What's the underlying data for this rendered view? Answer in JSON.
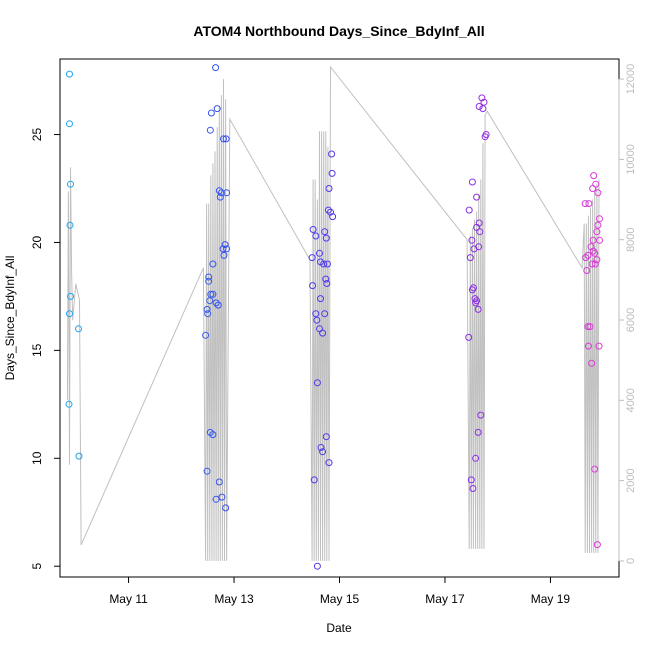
{
  "chart_data": {
    "type": "scatter",
    "title": "ATOM4 Northbound Days_Since_BdyInf_All",
    "xlabel": "Date",
    "ylabel": "Days_Since_BdyInf_All",
    "x_unit": "date (May, fractional day)",
    "xlim": [
      9.7,
      20.3
    ],
    "ylim": [
      4.5,
      28.5
    ],
    "x_ticks": [
      11,
      13,
      15,
      17,
      19
    ],
    "x_tick_labels": [
      "May 11",
      "May 13",
      "May 15",
      "May 17",
      "May 19"
    ],
    "y_ticks": [
      5,
      10,
      15,
      20,
      25
    ],
    "y2_ticks": [
      0,
      2000,
      4000,
      6000,
      8000,
      10000,
      12000
    ],
    "y2lim": [
      -400,
      12500
    ],
    "grid": false,
    "legend": "none",
    "colors": {
      "line": "#c0c0c0",
      "axis": "#000000",
      "right_axis": "#bdbdbd",
      "point_gradient": [
        "#1fa8f0",
        "#3a46ee",
        "#6a2ae8",
        "#e23ad8"
      ]
    },
    "points": [
      {
        "x": 9.88,
        "y": 27.8
      },
      {
        "x": 9.88,
        "y": 25.5
      },
      {
        "x": 9.9,
        "y": 22.7
      },
      {
        "x": 9.89,
        "y": 20.8
      },
      {
        "x": 9.88,
        "y": 16.7
      },
      {
        "x": 9.9,
        "y": 17.5
      },
      {
        "x": 9.87,
        "y": 12.5
      },
      {
        "x": 10.05,
        "y": 16.0
      },
      {
        "x": 10.06,
        "y": 10.1
      },
      {
        "x": 12.65,
        "y": 28.1
      },
      {
        "x": 12.68,
        "y": 26.2
      },
      {
        "x": 12.57,
        "y": 26.0
      },
      {
        "x": 12.55,
        "y": 25.2
      },
      {
        "x": 12.8,
        "y": 24.8
      },
      {
        "x": 12.85,
        "y": 24.8
      },
      {
        "x": 12.72,
        "y": 22.4
      },
      {
        "x": 12.76,
        "y": 22.3
      },
      {
        "x": 12.86,
        "y": 22.3
      },
      {
        "x": 12.74,
        "y": 22.1
      },
      {
        "x": 12.83,
        "y": 19.9
      },
      {
        "x": 12.86,
        "y": 19.7
      },
      {
        "x": 12.79,
        "y": 19.7
      },
      {
        "x": 12.81,
        "y": 19.4
      },
      {
        "x": 12.6,
        "y": 19.0
      },
      {
        "x": 12.52,
        "y": 18.4
      },
      {
        "x": 12.52,
        "y": 18.2
      },
      {
        "x": 12.56,
        "y": 17.6
      },
      {
        "x": 12.6,
        "y": 17.6
      },
      {
        "x": 12.54,
        "y": 17.3
      },
      {
        "x": 12.66,
        "y": 17.2
      },
      {
        "x": 12.7,
        "y": 17.1
      },
      {
        "x": 12.49,
        "y": 16.9
      },
      {
        "x": 12.5,
        "y": 16.7
      },
      {
        "x": 12.46,
        "y": 15.7
      },
      {
        "x": 12.55,
        "y": 11.2
      },
      {
        "x": 12.6,
        "y": 11.1
      },
      {
        "x": 12.49,
        "y": 9.4
      },
      {
        "x": 12.72,
        "y": 8.9
      },
      {
        "x": 12.77,
        "y": 8.2
      },
      {
        "x": 12.66,
        "y": 8.1
      },
      {
        "x": 12.84,
        "y": 7.7
      },
      {
        "x": 14.85,
        "y": 24.1
      },
      {
        "x": 14.86,
        "y": 23.2
      },
      {
        "x": 14.8,
        "y": 22.5
      },
      {
        "x": 14.79,
        "y": 21.5
      },
      {
        "x": 14.83,
        "y": 21.4
      },
      {
        "x": 14.87,
        "y": 21.2
      },
      {
        "x": 14.5,
        "y": 20.6
      },
      {
        "x": 14.72,
        "y": 20.5
      },
      {
        "x": 14.55,
        "y": 20.3
      },
      {
        "x": 14.75,
        "y": 20.2
      },
      {
        "x": 14.62,
        "y": 19.5
      },
      {
        "x": 14.48,
        "y": 19.3
      },
      {
        "x": 14.64,
        "y": 19.1
      },
      {
        "x": 14.7,
        "y": 19.0
      },
      {
        "x": 14.77,
        "y": 19.0
      },
      {
        "x": 14.74,
        "y": 18.3
      },
      {
        "x": 14.76,
        "y": 18.1
      },
      {
        "x": 14.49,
        "y": 18.0
      },
      {
        "x": 14.64,
        "y": 17.4
      },
      {
        "x": 14.55,
        "y": 16.7
      },
      {
        "x": 14.72,
        "y": 16.7
      },
      {
        "x": 14.57,
        "y": 16.4
      },
      {
        "x": 14.62,
        "y": 16.0
      },
      {
        "x": 14.68,
        "y": 15.8
      },
      {
        "x": 14.58,
        "y": 13.5
      },
      {
        "x": 14.75,
        "y": 11.0
      },
      {
        "x": 14.65,
        "y": 10.5
      },
      {
        "x": 14.68,
        "y": 10.3
      },
      {
        "x": 14.8,
        "y": 9.8
      },
      {
        "x": 14.52,
        "y": 9.0
      },
      {
        "x": 14.58,
        "y": 5.0
      },
      {
        "x": 17.7,
        "y": 26.7
      },
      {
        "x": 17.74,
        "y": 26.5
      },
      {
        "x": 17.65,
        "y": 26.3
      },
      {
        "x": 17.72,
        "y": 26.2
      },
      {
        "x": 17.78,
        "y": 25.0
      },
      {
        "x": 17.76,
        "y": 24.9
      },
      {
        "x": 17.52,
        "y": 22.8
      },
      {
        "x": 17.6,
        "y": 22.1
      },
      {
        "x": 17.46,
        "y": 21.5
      },
      {
        "x": 17.65,
        "y": 20.9
      },
      {
        "x": 17.6,
        "y": 20.7
      },
      {
        "x": 17.66,
        "y": 20.5
      },
      {
        "x": 17.51,
        "y": 20.1
      },
      {
        "x": 17.64,
        "y": 19.8
      },
      {
        "x": 17.55,
        "y": 19.7
      },
      {
        "x": 17.48,
        "y": 19.3
      },
      {
        "x": 17.54,
        "y": 17.9
      },
      {
        "x": 17.52,
        "y": 17.8
      },
      {
        "x": 17.57,
        "y": 17.4
      },
      {
        "x": 17.6,
        "y": 17.3
      },
      {
        "x": 17.58,
        "y": 17.2
      },
      {
        "x": 17.63,
        "y": 16.9
      },
      {
        "x": 17.45,
        "y": 15.6
      },
      {
        "x": 17.68,
        "y": 12.0
      },
      {
        "x": 17.63,
        "y": 11.2
      },
      {
        "x": 17.58,
        "y": 10.0
      },
      {
        "x": 17.5,
        "y": 9.0
      },
      {
        "x": 17.53,
        "y": 8.6
      },
      {
        "x": 19.82,
        "y": 23.1
      },
      {
        "x": 19.86,
        "y": 22.7
      },
      {
        "x": 19.8,
        "y": 22.5
      },
      {
        "x": 19.9,
        "y": 22.3
      },
      {
        "x": 19.73,
        "y": 21.8
      },
      {
        "x": 19.66,
        "y": 21.8
      },
      {
        "x": 19.93,
        "y": 21.1
      },
      {
        "x": 19.9,
        "y": 20.8
      },
      {
        "x": 19.88,
        "y": 20.5
      },
      {
        "x": 19.81,
        "y": 20.1
      },
      {
        "x": 19.93,
        "y": 20.1
      },
      {
        "x": 19.77,
        "y": 19.8
      },
      {
        "x": 19.81,
        "y": 19.6
      },
      {
        "x": 19.84,
        "y": 19.5
      },
      {
        "x": 19.71,
        "y": 19.4
      },
      {
        "x": 19.67,
        "y": 19.3
      },
      {
        "x": 19.88,
        "y": 19.2
      },
      {
        "x": 19.85,
        "y": 19.0
      },
      {
        "x": 19.79,
        "y": 19.0
      },
      {
        "x": 19.69,
        "y": 18.7
      },
      {
        "x": 19.71,
        "y": 16.1
      },
      {
        "x": 19.75,
        "y": 16.1
      },
      {
        "x": 19.72,
        "y": 15.2
      },
      {
        "x": 19.92,
        "y": 15.2
      },
      {
        "x": 19.78,
        "y": 14.4
      },
      {
        "x": 19.84,
        "y": 9.5
      },
      {
        "x": 19.89,
        "y": 6.0
      }
    ],
    "line_series": [
      {
        "x": 9.84,
        "y2": 4000
      },
      {
        "x": 9.86,
        "y2": 9200
      },
      {
        "x": 9.88,
        "y2": 2400
      },
      {
        "x": 9.9,
        "y2": 9800
      },
      {
        "x": 9.92,
        "y2": 7200
      },
      {
        "x": 9.94,
        "y2": 6000
      },
      {
        "x": 10.0,
        "y2": 6900
      },
      {
        "x": 10.07,
        "y2": 6500
      },
      {
        "x": 10.1,
        "y2": 400
      },
      {
        "x": 12.42,
        "y2": 7300
      },
      {
        "x": 12.46,
        "y2": 0
      },
      {
        "x": 12.48,
        "y2": 8900
      },
      {
        "x": 12.5,
        "y2": 0
      },
      {
        "x": 12.52,
        "y2": 8900
      },
      {
        "x": 12.54,
        "y2": 0
      },
      {
        "x": 12.56,
        "y2": 9600
      },
      {
        "x": 12.58,
        "y2": 0
      },
      {
        "x": 12.6,
        "y2": 9900
      },
      {
        "x": 12.62,
        "y2": 0
      },
      {
        "x": 12.64,
        "y2": 10200
      },
      {
        "x": 12.66,
        "y2": 0
      },
      {
        "x": 12.68,
        "y2": 10800
      },
      {
        "x": 12.7,
        "y2": 0
      },
      {
        "x": 12.72,
        "y2": 11300
      },
      {
        "x": 12.74,
        "y2": 0
      },
      {
        "x": 12.76,
        "y2": 11600
      },
      {
        "x": 12.78,
        "y2": 0
      },
      {
        "x": 12.8,
        "y2": 12000
      },
      {
        "x": 12.82,
        "y2": 0
      },
      {
        "x": 12.84,
        "y2": 11500
      },
      {
        "x": 12.86,
        "y2": 0
      },
      {
        "x": 12.92,
        "y2": 11000
      },
      {
        "x": 14.44,
        "y2": 7500
      },
      {
        "x": 14.48,
        "y2": 0
      },
      {
        "x": 14.5,
        "y2": 9500
      },
      {
        "x": 14.52,
        "y2": 0
      },
      {
        "x": 14.54,
        "y2": 9500
      },
      {
        "x": 14.56,
        "y2": 0
      },
      {
        "x": 14.58,
        "y2": 9000
      },
      {
        "x": 14.6,
        "y2": 0
      },
      {
        "x": 14.62,
        "y2": 10700
      },
      {
        "x": 14.64,
        "y2": 0
      },
      {
        "x": 14.66,
        "y2": 10700
      },
      {
        "x": 14.68,
        "y2": 0
      },
      {
        "x": 14.7,
        "y2": 10700
      },
      {
        "x": 14.72,
        "y2": 0
      },
      {
        "x": 14.74,
        "y2": 10700
      },
      {
        "x": 14.76,
        "y2": 0
      },
      {
        "x": 14.78,
        "y2": 10300
      },
      {
        "x": 14.8,
        "y2": 0
      },
      {
        "x": 14.83,
        "y2": 12300
      },
      {
        "x": 17.42,
        "y2": 8000
      },
      {
        "x": 17.46,
        "y2": 300
      },
      {
        "x": 17.48,
        "y2": 8100
      },
      {
        "x": 17.5,
        "y2": 300
      },
      {
        "x": 17.52,
        "y2": 8300
      },
      {
        "x": 17.54,
        "y2": 300
      },
      {
        "x": 17.56,
        "y2": 8500
      },
      {
        "x": 17.58,
        "y2": 300
      },
      {
        "x": 17.6,
        "y2": 8700
      },
      {
        "x": 17.62,
        "y2": 300
      },
      {
        "x": 17.64,
        "y2": 9100
      },
      {
        "x": 17.66,
        "y2": 300
      },
      {
        "x": 17.68,
        "y2": 9500
      },
      {
        "x": 17.7,
        "y2": 300
      },
      {
        "x": 17.72,
        "y2": 10400
      },
      {
        "x": 17.74,
        "y2": 300
      },
      {
        "x": 17.76,
        "y2": 11100
      },
      {
        "x": 17.8,
        "y2": 11200
      },
      {
        "x": 19.6,
        "y2": 7300
      },
      {
        "x": 19.64,
        "y2": 8400
      },
      {
        "x": 19.66,
        "y2": 200
      },
      {
        "x": 19.68,
        "y2": 8400
      },
      {
        "x": 19.7,
        "y2": 200
      },
      {
        "x": 19.72,
        "y2": 8600
      },
      {
        "x": 19.74,
        "y2": 200
      },
      {
        "x": 19.76,
        "y2": 8800
      },
      {
        "x": 19.78,
        "y2": 200
      },
      {
        "x": 19.8,
        "y2": 9000
      },
      {
        "x": 19.82,
        "y2": 200
      },
      {
        "x": 19.84,
        "y2": 9200
      },
      {
        "x": 19.86,
        "y2": 200
      },
      {
        "x": 19.88,
        "y2": 9400
      },
      {
        "x": 19.9,
        "y2": 200
      },
      {
        "x": 19.92,
        "y2": 9500
      }
    ]
  }
}
